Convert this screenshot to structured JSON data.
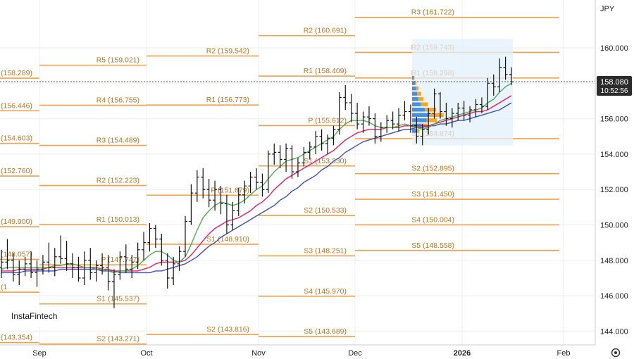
{
  "chart_data": {
    "type": "ohlc",
    "symbol": "JPY",
    "price_axis": {
      "ticks": [
        "160.000",
        "158.000",
        "156.000",
        "154.000",
        "152.000",
        "150.000",
        "148.000",
        "146.000",
        "144.000"
      ],
      "ylim": [
        142.5,
        162.5
      ]
    },
    "time_axis": {
      "ticks": [
        "Sep",
        "Oct",
        "Nov",
        "Dec",
        "2026",
        "Feb"
      ]
    },
    "current_price": "158.080",
    "current_time": "10:52:56",
    "brand": "InstaFintech",
    "colors": {
      "pivot": "#f0a04b",
      "ma_fast": "#4caf50",
      "ma_mid": "#e91e63",
      "ma_slow": "#3f51b5",
      "profile_blue": "#4a90d9",
      "profile_orange": "#f5a623",
      "profile_bg": "#e3f0fb"
    },
    "pivot_periods": [
      {
        "labels": [
          "(158.289)",
          "(156.446)",
          "(154.603)",
          "(152.760)",
          "(149.900)",
          "(148.057)",
          "(1",
          "(143.354)"
        ],
        "values": [
          158.289,
          156.446,
          154.603,
          152.76,
          149.9,
          148.057,
          146.2,
          143.354
        ]
      },
      {
        "labels": [
          "R5 (159.021)",
          "R4 (156.755)",
          "R3 (154.489)",
          "R2 (152.223)",
          "R1 (150.013)",
          "P (147.747)",
          "S1 (145.537)",
          "S2 (143.271)"
        ],
        "values": [
          159.021,
          156.755,
          154.489,
          152.223,
          150.013,
          147.747,
          145.537,
          143.271
        ]
      },
      {
        "labels": [
          "R2 (159.542)",
          "R1 (156.773)",
          "P (151.679)",
          "S1 (148.910)",
          "S2 (143.816)"
        ],
        "values": [
          159.542,
          156.773,
          151.679,
          148.91,
          143.816
        ]
      },
      {
        "labels": [
          "R2 (160.691)",
          "R1 (158.409)",
          "P (155.612)",
          "S1 (153.330)",
          "S2 (150.533)",
          "S3 (148.251)",
          "S4 (145.970)",
          "S5 (143.689)"
        ],
        "values": [
          160.691,
          158.409,
          155.612,
          153.33,
          150.533,
          148.251,
          145.97,
          143.689
        ]
      },
      {
        "labels": [
          "R3 (161.722)",
          "R2 (159.743)",
          "R1 (158.298)",
          "S1 (154.874)",
          "S2 (152.895)",
          "S3 (151.450)",
          "S4 (150.004)",
          "S5 (148.558)"
        ],
        "values": [
          161.722,
          159.743,
          158.298,
          154.874,
          152.895,
          151.45,
          150.004,
          148.558
        ]
      }
    ],
    "ohlc": [
      [
        147.6,
        148.6,
        147.0,
        147.9
      ],
      [
        147.9,
        149.2,
        147.5,
        148.0
      ],
      [
        148.0,
        148.4,
        146.8,
        147.2
      ],
      [
        147.2,
        148.0,
        146.6,
        147.5
      ],
      [
        147.5,
        148.2,
        147.1,
        147.8
      ],
      [
        147.8,
        148.5,
        147.0,
        147.3
      ],
      [
        147.3,
        148.0,
        146.5,
        147.5
      ],
      [
        147.5,
        148.3,
        147.2,
        147.9
      ],
      [
        147.9,
        149.0,
        147.3,
        147.6
      ],
      [
        147.6,
        148.7,
        147.1,
        148.2
      ],
      [
        148.2,
        149.4,
        147.8,
        148.1
      ],
      [
        148.1,
        149.1,
        147.4,
        147.8
      ],
      [
        147.8,
        148.4,
        147.0,
        147.6
      ],
      [
        147.6,
        148.2,
        146.8,
        147.0
      ],
      [
        147.0,
        148.5,
        146.6,
        148.0
      ],
      [
        148.0,
        148.7,
        146.9,
        147.3
      ],
      [
        147.3,
        148.0,
        146.8,
        147.7
      ],
      [
        147.7,
        148.4,
        147.2,
        147.6
      ],
      [
        147.6,
        148.3,
        146.3,
        146.8
      ],
      [
        146.8,
        147.5,
        145.3,
        147.2
      ],
      [
        147.2,
        148.5,
        146.9,
        148.2
      ],
      [
        148.2,
        148.9,
        147.3,
        147.5
      ],
      [
        147.5,
        148.3,
        147.0,
        147.9
      ],
      [
        147.9,
        149.0,
        147.5,
        148.6
      ],
      [
        148.6,
        149.6,
        148.0,
        149.0
      ],
      [
        149.0,
        150.1,
        148.5,
        149.8
      ],
      [
        149.8,
        150.0,
        148.7,
        149.2
      ],
      [
        149.2,
        149.5,
        147.7,
        148.0
      ],
      [
        148.0,
        148.4,
        146.4,
        147.0
      ],
      [
        147.0,
        148.2,
        146.6,
        147.8
      ],
      [
        147.8,
        148.8,
        147.4,
        148.5
      ],
      [
        148.5,
        150.5,
        148.2,
        150.2
      ],
      [
        150.2,
        152.3,
        150.0,
        151.8
      ],
      [
        151.8,
        153.1,
        151.3,
        152.7
      ],
      [
        152.7,
        153.2,
        151.5,
        152.0
      ],
      [
        152.0,
        152.6,
        151.0,
        151.4
      ],
      [
        151.4,
        152.5,
        150.8,
        152.0
      ],
      [
        152.0,
        152.2,
        150.6,
        151.2
      ],
      [
        151.2,
        151.7,
        149.5,
        150.0
      ],
      [
        150.0,
        151.3,
        149.7,
        150.8
      ],
      [
        150.8,
        152.1,
        150.5,
        151.7
      ],
      [
        151.7,
        152.5,
        151.2,
        152.2
      ],
      [
        152.2,
        153.0,
        151.8,
        152.7
      ],
      [
        152.7,
        153.2,
        152.0,
        152.4
      ],
      [
        152.4,
        152.9,
        151.6,
        152.0
      ],
      [
        152.0,
        154.2,
        151.8,
        154.0
      ],
      [
        154.0,
        154.6,
        153.4,
        154.1
      ],
      [
        154.1,
        154.5,
        153.2,
        153.7
      ],
      [
        153.7,
        154.6,
        153.0,
        154.3
      ],
      [
        154.3,
        154.5,
        152.6,
        153.0
      ],
      [
        153.0,
        153.8,
        152.7,
        153.5
      ],
      [
        153.5,
        154.4,
        153.3,
        154.1
      ],
      [
        154.1,
        154.7,
        153.7,
        154.4
      ],
      [
        154.4,
        155.3,
        154.0,
        155.0
      ],
      [
        155.0,
        155.4,
        154.2,
        154.6
      ],
      [
        154.6,
        155.1,
        154.0,
        154.9
      ],
      [
        154.9,
        155.6,
        154.5,
        155.4
      ],
      [
        155.4,
        157.5,
        155.1,
        157.2
      ],
      [
        157.2,
        157.9,
        156.5,
        156.9
      ],
      [
        156.9,
        157.4,
        155.8,
        156.3
      ],
      [
        156.3,
        156.9,
        155.4,
        155.7
      ],
      [
        155.7,
        156.4,
        155.2,
        156.1
      ],
      [
        156.1,
        156.7,
        155.6,
        156.0
      ],
      [
        156.0,
        156.3,
        154.6,
        155.0
      ],
      [
        155.0,
        155.8,
        154.7,
        155.5
      ],
      [
        155.5,
        156.2,
        155.2,
        155.9
      ],
      [
        155.9,
        156.4,
        155.4,
        155.7
      ],
      [
        155.7,
        156.6,
        155.3,
        156.2
      ],
      [
        156.2,
        157.0,
        155.9,
        156.4
      ],
      [
        156.4,
        156.8,
        155.2,
        155.6
      ],
      [
        155.6,
        156.1,
        154.6,
        155.0
      ],
      [
        155.0,
        155.7,
        154.5,
        155.4
      ],
      [
        155.4,
        156.6,
        155.1,
        156.3
      ],
      [
        156.3,
        157.7,
        156.0,
        157.4
      ],
      [
        157.4,
        157.5,
        156.0,
        156.4
      ],
      [
        156.4,
        156.9,
        155.6,
        156.0
      ],
      [
        156.0,
        156.6,
        155.5,
        156.3
      ],
      [
        156.3,
        156.9,
        155.9,
        156.6
      ],
      [
        156.6,
        157.0,
        155.9,
        156.2
      ],
      [
        156.2,
        156.7,
        155.8,
        156.5
      ],
      [
        156.5,
        157.1,
        156.1,
        156.8
      ],
      [
        156.8,
        157.2,
        156.3,
        156.7
      ],
      [
        156.7,
        158.3,
        156.5,
        158.0
      ],
      [
        158.0,
        158.5,
        157.3,
        157.8
      ],
      [
        157.8,
        159.4,
        157.5,
        158.9
      ],
      [
        158.9,
        159.5,
        158.2,
        158.5
      ],
      [
        158.5,
        158.9,
        157.9,
        158.08
      ]
    ],
    "ma_fast": [
      147.5,
      147.6,
      147.6,
      147.6,
      147.6,
      147.6,
      147.6,
      147.6,
      147.6,
      147.7,
      147.7,
      147.8,
      147.8,
      147.7,
      147.6,
      147.6,
      147.5,
      147.5,
      147.4,
      147.3,
      147.4,
      147.4,
      147.5,
      147.7,
      148.0,
      148.3,
      148.5,
      148.5,
      148.3,
      148.0,
      147.9,
      148.2,
      148.9,
      149.7,
      150.4,
      150.8,
      151.1,
      151.3,
      151.2,
      151.1,
      151.2,
      151.4,
      151.7,
      152.0,
      152.2,
      152.6,
      153.0,
      153.3,
      153.6,
      153.7,
      153.8,
      154.0,
      154.2,
      154.4,
      154.6,
      154.8,
      155.0,
      155.4,
      155.7,
      155.9,
      155.9,
      155.9,
      155.8,
      155.6,
      155.5,
      155.5,
      155.5,
      155.6,
      155.7,
      155.6,
      155.5,
      155.4,
      155.5,
      155.7,
      155.9,
      156.0,
      156.1,
      156.2,
      156.3,
      156.4,
      156.5,
      156.6,
      156.9,
      157.1,
      157.5,
      157.8,
      158.0
    ],
    "ma_mid": [
      147.4,
      147.4,
      147.4,
      147.5,
      147.5,
      147.5,
      147.5,
      147.5,
      147.6,
      147.6,
      147.6,
      147.6,
      147.6,
      147.6,
      147.6,
      147.6,
      147.6,
      147.5,
      147.5,
      147.4,
      147.4,
      147.4,
      147.4,
      147.4,
      147.5,
      147.6,
      147.8,
      147.9,
      147.9,
      147.9,
      147.9,
      148.0,
      148.3,
      148.7,
      149.1,
      149.5,
      149.8,
      150.0,
      150.2,
      150.3,
      150.4,
      150.6,
      150.8,
      151.1,
      151.3,
      151.6,
      152.0,
      152.3,
      152.6,
      152.8,
      153.0,
      153.2,
      153.4,
      153.6,
      153.8,
      154.0,
      154.2,
      154.5,
      154.8,
      155.0,
      155.2,
      155.3,
      155.4,
      155.4,
      155.4,
      155.5,
      155.5,
      155.5,
      155.6,
      155.6,
      155.6,
      155.6,
      155.6,
      155.7,
      155.8,
      155.9,
      156.0,
      156.1,
      156.2,
      156.3,
      156.4,
      156.4,
      156.5,
      156.7,
      156.9,
      157.1,
      157.3
    ],
    "ma_slow": [
      147.3,
      147.3,
      147.3,
      147.3,
      147.4,
      147.4,
      147.4,
      147.4,
      147.4,
      147.4,
      147.5,
      147.5,
      147.5,
      147.5,
      147.5,
      147.5,
      147.5,
      147.4,
      147.4,
      147.4,
      147.3,
      147.3,
      147.3,
      147.3,
      147.3,
      147.3,
      147.4,
      147.4,
      147.5,
      147.6,
      147.7,
      147.8,
      148.0,
      148.2,
      148.5,
      148.8,
      149.0,
      149.3,
      149.5,
      149.7,
      149.9,
      150.1,
      150.3,
      150.5,
      150.7,
      150.9,
      151.1,
      151.4,
      151.6,
      151.9,
      152.1,
      152.4,
      152.6,
      152.8,
      153.1,
      153.3,
      153.6,
      153.8,
      154.1,
      154.3,
      154.5,
      154.7,
      154.8,
      154.9,
      155.0,
      155.1,
      155.2,
      155.3,
      155.4,
      155.4,
      155.5,
      155.5,
      155.6,
      155.6,
      155.7,
      155.7,
      155.8,
      155.9,
      155.9,
      156.0,
      156.1,
      156.2,
      156.3,
      156.4,
      156.5,
      156.7,
      156.9
    ],
    "volume_profile": [
      {
        "price": 158.3,
        "blue": 0.06,
        "orange": 0.02
      },
      {
        "price": 158.0,
        "blue": 0.1,
        "orange": 0.05
      },
      {
        "price": 157.7,
        "blue": 0.14,
        "orange": 0.09
      },
      {
        "price": 157.4,
        "blue": 0.18,
        "orange": 0.14
      },
      {
        "price": 157.1,
        "blue": 0.22,
        "orange": 0.18
      },
      {
        "price": 156.8,
        "blue": 0.3,
        "orange": 0.26
      },
      {
        "price": 156.5,
        "blue": 0.45,
        "orange": 0.4
      },
      {
        "price": 156.2,
        "blue": 0.6,
        "orange": 0.52
      },
      {
        "price": 155.9,
        "blue": 0.52,
        "orange": 0.36
      },
      {
        "price": 155.6,
        "blue": 0.34,
        "orange": 0.2
      },
      {
        "price": 155.3,
        "blue": 0.18,
        "orange": 0.08
      }
    ]
  }
}
